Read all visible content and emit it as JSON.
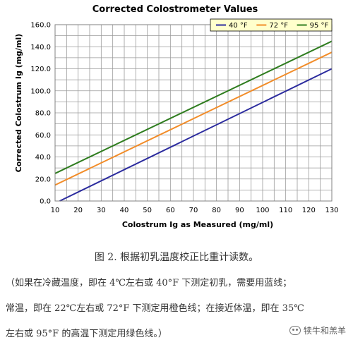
{
  "chart_data": {
    "type": "line",
    "title": "Corrected Colostrometer Values",
    "xlabel": "Colostrum Ig as Measured (mg/ml)",
    "ylabel": "Corrected Colostrum Ig (mg/ml)",
    "xlim": [
      10,
      130
    ],
    "ylim": [
      0,
      160
    ],
    "x_ticks": [
      "10",
      "20",
      "30",
      "40",
      "50",
      "60",
      "70",
      "80",
      "90",
      "100",
      "110",
      "120",
      "130"
    ],
    "y_ticks": [
      "0.0",
      "20.0",
      "40.0",
      "60.0",
      "80.0",
      "100.0",
      "120.0",
      "140.0",
      "160.0"
    ],
    "grid": true,
    "legend_position": "top-right",
    "series": [
      {
        "name": "40 °F",
        "color": "#2b2b9e",
        "x": [
          12,
          130
        ],
        "y": [
          0,
          120
        ]
      },
      {
        "name": "72 °F",
        "color": "#f28c28",
        "x": [
          10,
          130
        ],
        "y": [
          14.5,
          135
        ]
      },
      {
        "name": "95 °F",
        "color": "#2f7d1f",
        "x": [
          10,
          130
        ],
        "y": [
          25,
          145
        ]
      }
    ]
  },
  "caption": {
    "line1": "图 2. 根据初乳温度校正比重计读数。",
    "line2": "（如果在冷藏温度，即在 4℃左右或 40°F 下测定初乳，需要用蓝线；",
    "line3": "常温，即在 22℃左右或 72°F 下测定用橙色线；在接近体温，即在 35℃",
    "line4": "左右或 95°F 的高温下测定用绿色线。）"
  },
  "watermark": {
    "text": "犊牛和羔羊",
    "icon": "wechat-icon"
  }
}
